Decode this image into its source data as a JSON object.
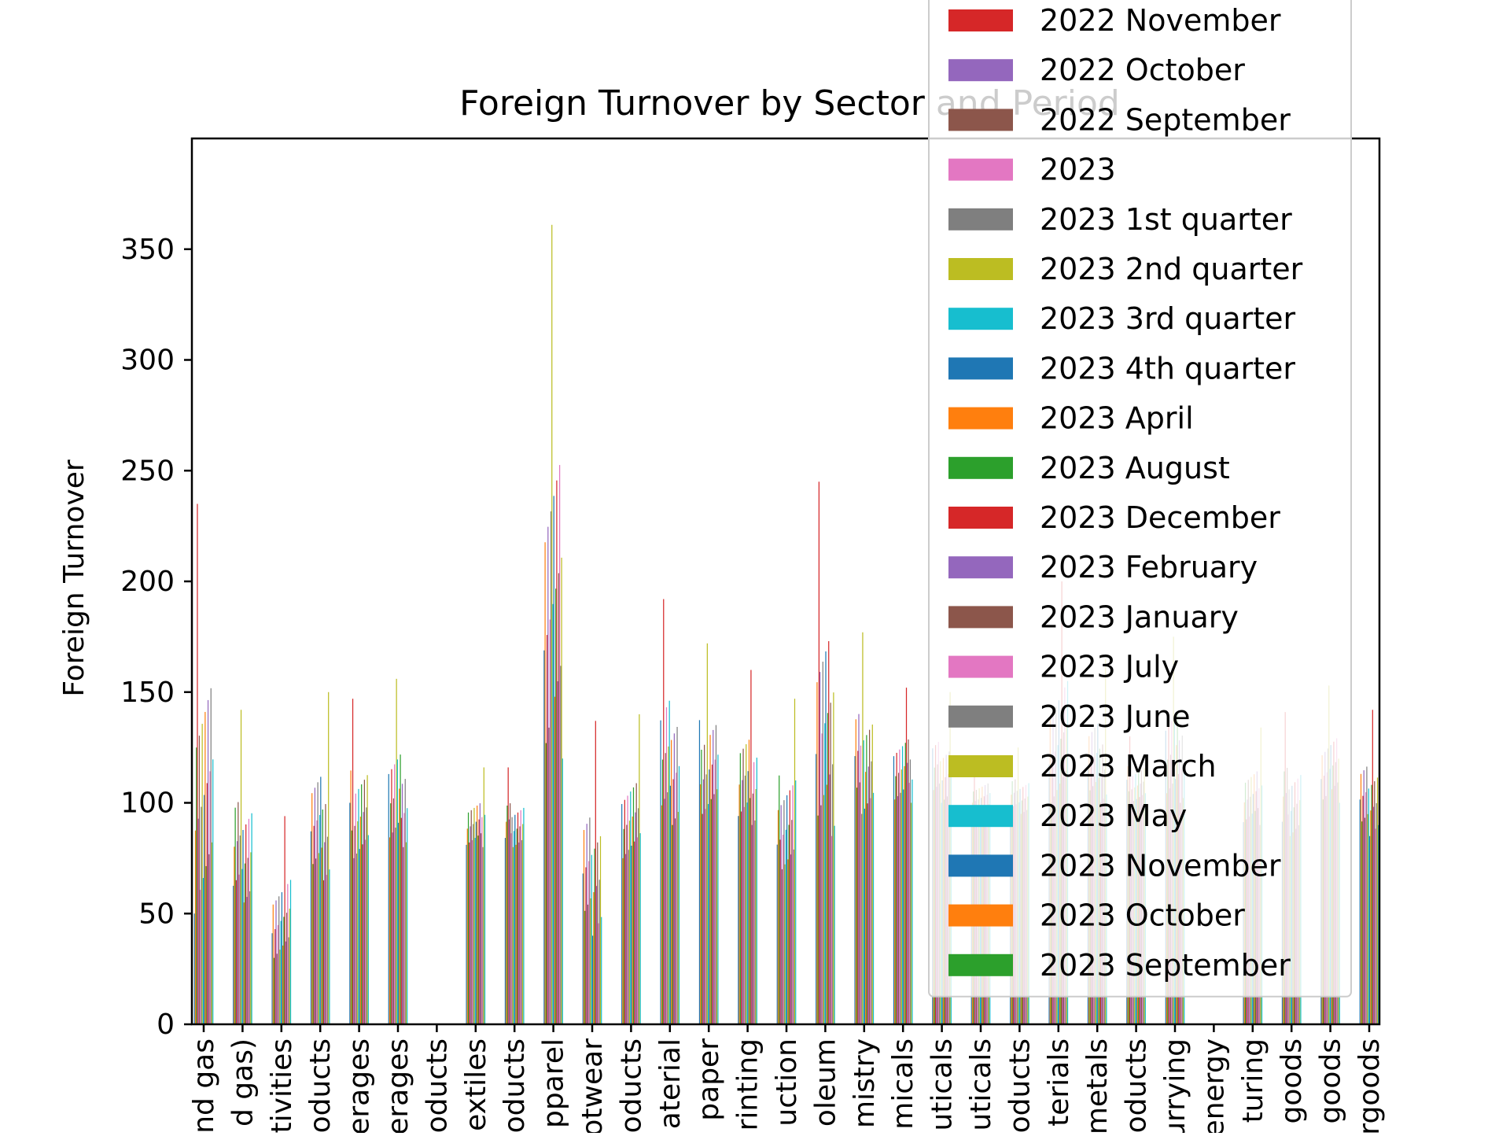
{
  "chart_data": {
    "type": "bar",
    "title": "Foreign Turnover by Sector and Period",
    "xlabel": "",
    "ylabel": "Foreign Turnover",
    "ylim": [
      0,
      400
    ],
    "yticks": [
      0,
      50,
      100,
      150,
      200,
      250,
      300,
      350
    ],
    "grid": false,
    "legend_position": "top-right",
    "categories": [
      "nd gas",
      "d gas)",
      "tivities",
      "oducts",
      "erages",
      "erages",
      "oducts",
      "extiles",
      "oducts",
      "pparel",
      "otwear",
      "oducts",
      "aterial",
      "paper",
      "rinting",
      "uction",
      "oleum",
      "mistry",
      "micals",
      "uticals",
      "uticals",
      "oducts",
      "terials",
      "metals",
      "oducts",
      "urrying",
      "energy",
      "turing",
      "goods",
      "goods",
      "rgoods"
    ],
    "palette": [
      "#1f77b4",
      "#ff7f0e",
      "#2ca02c",
      "#d62728",
      "#9467bd",
      "#8c564b",
      "#e377c2",
      "#7f7f7f",
      "#bcbd22",
      "#17becf"
    ],
    "series": [
      {
        "name": "2022 November"
      },
      {
        "name": "2022 October"
      },
      {
        "name": "2022 September"
      },
      {
        "name": "2023"
      },
      {
        "name": "2023 1st quarter"
      },
      {
        "name": "2023 2nd quarter"
      },
      {
        "name": "2023 3rd quarter"
      },
      {
        "name": "2023 4th quarter"
      },
      {
        "name": "2023 April"
      },
      {
        "name": "2023 August"
      },
      {
        "name": "2023 December"
      },
      {
        "name": "2023 February"
      },
      {
        "name": "2023 January"
      },
      {
        "name": "2023 July"
      },
      {
        "name": "2023 June"
      },
      {
        "name": "2023 March"
      },
      {
        "name": "2023 May"
      },
      {
        "name": "2023 November"
      },
      {
        "name": "2023 October"
      },
      {
        "name": "2023 September"
      }
    ],
    "legend_colors": [
      "#d62728",
      "#9467bd",
      "#8c564b",
      "#e377c2",
      "#7f7f7f",
      "#bcbd22",
      "#17becf",
      "#1f77b4",
      "#ff7f0e",
      "#2ca02c",
      "#d62728",
      "#9467bd",
      "#8c564b",
      "#e377c2",
      "#7f7f7f",
      "#bcbd22",
      "#17becf",
      "#1f77b4",
      "#ff7f0e",
      "#2ca02c"
    ],
    "category_profiles": [
      {
        "min": 50,
        "max": 235
      },
      {
        "min": 55,
        "max": 142
      },
      {
        "min": 30,
        "max": 94
      },
      {
        "min": 65,
        "max": 150
      },
      {
        "min": 75,
        "max": 147
      },
      {
        "min": 80,
        "max": 156
      },
      {
        "min": 0,
        "max": 0
      },
      {
        "min": 80,
        "max": 116
      },
      {
        "min": 80,
        "max": 116
      },
      {
        "min": 120,
        "max": 361
      },
      {
        "min": 40,
        "max": 137
      },
      {
        "min": 75,
        "max": 140
      },
      {
        "min": 90,
        "max": 192
      },
      {
        "min": 95,
        "max": 172
      },
      {
        "min": 90,
        "max": 160
      },
      {
        "min": 70,
        "max": 147
      },
      {
        "min": 85,
        "max": 245
      },
      {
        "min": 95,
        "max": 177
      },
      {
        "min": 100,
        "max": 152
      },
      {
        "min": 100,
        "max": 150
      },
      {
        "min": 95,
        "max": 120
      },
      {
        "min": 95,
        "max": 125
      },
      {
        "min": 100,
        "max": 200
      },
      {
        "min": 100,
        "max": 165
      },
      {
        "min": 100,
        "max": 130
      },
      {
        "min": 100,
        "max": 175
      },
      {
        "min": 0,
        "max": 0
      },
      {
        "min": 90,
        "max": 134
      },
      {
        "min": 85,
        "max": 141
      },
      {
        "min": 100,
        "max": 153
      },
      {
        "min": 85,
        "max": 142
      }
    ]
  }
}
